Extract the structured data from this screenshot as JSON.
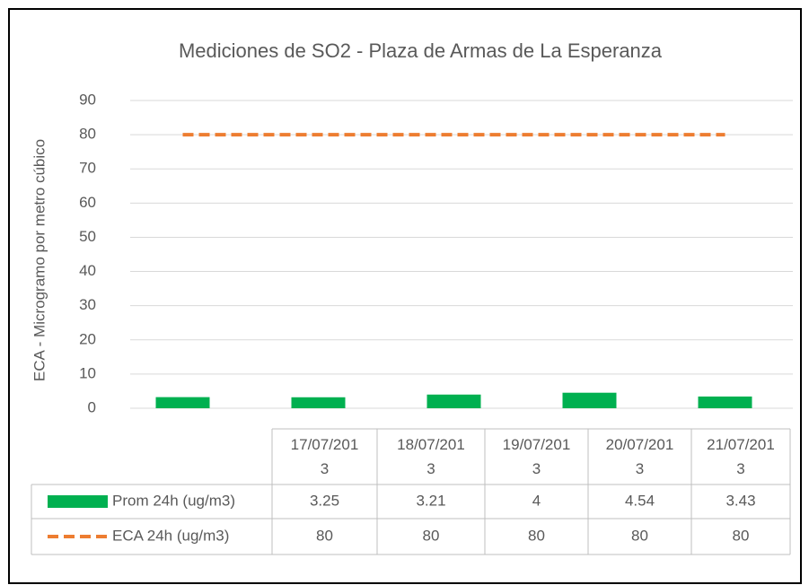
{
  "chart_data": {
    "type": "bar",
    "title": "Mediciones de SO2 - Plaza de Armas de La Esperanza",
    "y_label": "ECA - Microgramo por metro cúbico",
    "categories": [
      "17/07/2013",
      "18/07/2013",
      "19/07/2013",
      "20/07/2013",
      "21/07/2013"
    ],
    "series": [
      {
        "name": "Prom 24h (ug/m3)",
        "type": "bar",
        "color": "#00b050",
        "values": [
          3.25,
          3.21,
          4,
          4.54,
          3.43
        ]
      },
      {
        "name": "ECA 24h (ug/m3)",
        "type": "line",
        "style": "dashed",
        "color": "#ed7d31",
        "values": [
          80,
          80,
          80,
          80,
          80
        ]
      }
    ],
    "ylim": [
      0,
      90
    ],
    "yticks": [
      0,
      10,
      20,
      30,
      40,
      50,
      60,
      70,
      80,
      90
    ],
    "grid": true,
    "data_table": true
  }
}
